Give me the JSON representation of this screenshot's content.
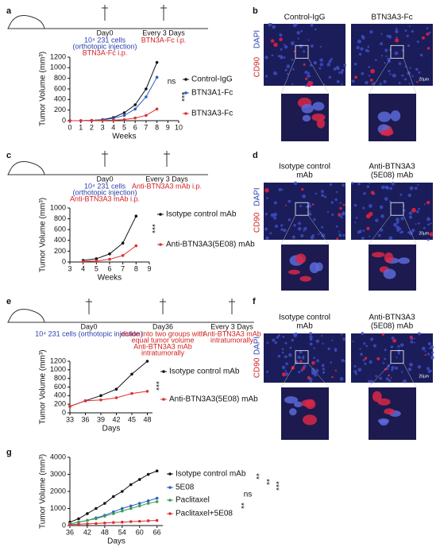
{
  "panels": {
    "labels": [
      "a",
      "b",
      "c",
      "d",
      "e",
      "f",
      "g"
    ],
    "a_timeline": [
      "Day0",
      "10⁴ 231 cells",
      "(orthotopic injection)",
      "BTN3A-Fc i.p.",
      "Every 3 Days",
      "BTN3A-Fc i.p."
    ],
    "c_timeline": [
      "Day0",
      "10⁴ 231 cells",
      "(orthotopic injection)",
      "Anti-BTN3A3 mAb i.p.",
      "Every 3 Days",
      "Anti-BTN3A3 mAb i.p."
    ],
    "e_timeline": [
      "Day0",
      "10⁴ 231 cells (orthotopic injection)",
      "Day36",
      "divide into two groups with",
      "equal tumor volume",
      "Anti-BTN3A3 mAb",
      "intratumorally",
      "Every 3 Days",
      "Anti-BTN3A3 mAb",
      "intratumorally"
    ],
    "b_images": {
      "columns": [
        "Control-IgG",
        "BTN3A3-Fc"
      ],
      "rows": [
        "DAPI",
        "CD90"
      ],
      "scale": "20μm"
    },
    "d_images": {
      "columns": [
        "Isotype control",
        "mAb",
        "Anti-BTN3A3",
        "(5E08) mAb"
      ],
      "rows": [
        "DAPI",
        "CD90"
      ],
      "scale": "20μm"
    },
    "f_images": {
      "columns": [
        "Isotype control",
        "mAb",
        "Anti-BTN3A3",
        "(5E08) mAb"
      ],
      "rows": [
        "DAPI",
        "CD90"
      ],
      "scale": "20μm"
    }
  },
  "chart_data": [
    {
      "type": "line",
      "x_label": "Weeks",
      "y_label": "Tumor Volume (mm³)",
      "x": [
        0,
        1,
        2,
        3,
        4,
        5,
        6,
        7,
        8
      ],
      "xlim": [
        0,
        10
      ],
      "xticks": [
        0,
        1,
        2,
        3,
        4,
        5,
        6,
        7,
        8,
        9,
        10
      ],
      "ylim": [
        0,
        1200
      ],
      "yticks": [
        0,
        200,
        400,
        600,
        800,
        1000,
        1200
      ],
      "series": [
        {
          "name": "Control-IgG",
          "color": "#111111",
          "values": [
            0,
            0,
            5,
            20,
            60,
            150,
            300,
            600,
            1100
          ]
        },
        {
          "name": "BTN3A1-Fc",
          "color": "#2a5fc0",
          "values": [
            0,
            0,
            5,
            15,
            45,
            100,
            220,
            450,
            820
          ]
        },
        {
          "name": "BTN3A3-Fc",
          "color": "#e03030",
          "values": [
            0,
            0,
            2,
            5,
            10,
            20,
            50,
            100,
            220
          ]
        }
      ],
      "annotations": [
        "ns",
        "***"
      ]
    },
    {
      "type": "line",
      "x_label": "Weeks",
      "y_label": "Tumor Volume (mm³)",
      "x": [
        4,
        5,
        6,
        7,
        8
      ],
      "xlim": [
        3,
        9
      ],
      "xticks": [
        3,
        4,
        5,
        6,
        7,
        8,
        9
      ],
      "ylim": [
        0,
        1000
      ],
      "yticks": [
        0,
        200,
        400,
        600,
        800,
        1000
      ],
      "series": [
        {
          "name": "Isotype control mAb",
          "color": "#111111",
          "values": [
            30,
            60,
            150,
            350,
            850
          ]
        },
        {
          "name": "Anti-BTN3A3(5E08) mAb",
          "color": "#e03030",
          "values": [
            10,
            20,
            50,
            120,
            300
          ]
        }
      ],
      "annotations": [
        "***"
      ]
    },
    {
      "type": "line",
      "x_label": "Days",
      "y_label": "Tumor Volume (mm³)",
      "x": [
        33,
        36,
        39,
        42,
        45,
        48
      ],
      "xlim": [
        33,
        49
      ],
      "xticks": [
        33,
        36,
        39,
        42,
        45,
        48
      ],
      "ylim": [
        0,
        1200
      ],
      "yticks": [
        0,
        200,
        400,
        600,
        800,
        1000,
        1200
      ],
      "series": [
        {
          "name": "Isotype control mAb",
          "color": "#111111",
          "values": [
            150,
            280,
            400,
            550,
            900,
            1200
          ]
        },
        {
          "name": "Anti-BTN3A3(5E08) mAb",
          "color": "#e03030",
          "values": [
            150,
            280,
            300,
            350,
            450,
            500
          ]
        }
      ],
      "annotations": [
        "***"
      ]
    },
    {
      "type": "line",
      "x_label": "Days",
      "y_label": "Tumor Volume (mm³)",
      "x": [
        36,
        39,
        42,
        45,
        48,
        51,
        54,
        57,
        60,
        63,
        66
      ],
      "xlim": [
        36,
        68
      ],
      "xticks": [
        36,
        42,
        48,
        54,
        60,
        66
      ],
      "ylim": [
        0,
        4000
      ],
      "yticks": [
        0,
        1000,
        2000,
        3000,
        4000
      ],
      "series": [
        {
          "name": "Isotype control mAb",
          "color": "#111111",
          "values": [
            200,
            400,
            700,
            1000,
            1300,
            1700,
            2000,
            2400,
            2700,
            3000,
            3200
          ]
        },
        {
          "name": "5E08",
          "color": "#2a5fc0",
          "values": [
            100,
            200,
            300,
            450,
            600,
            800,
            1000,
            1150,
            1300,
            1450,
            1600
          ]
        },
        {
          "name": "Paclitaxel",
          "color": "#3aa050",
          "values": [
            100,
            200,
            300,
            400,
            550,
            700,
            850,
            1000,
            1150,
            1300,
            1400
          ]
        },
        {
          "name": "Paclitaxel+5E08",
          "color": "#e03030",
          "values": [
            50,
            80,
            100,
            120,
            150,
            180,
            200,
            230,
            250,
            280,
            300
          ]
        }
      ],
      "annotations": [
        "**",
        "**",
        "***",
        "ns",
        "**"
      ]
    }
  ]
}
